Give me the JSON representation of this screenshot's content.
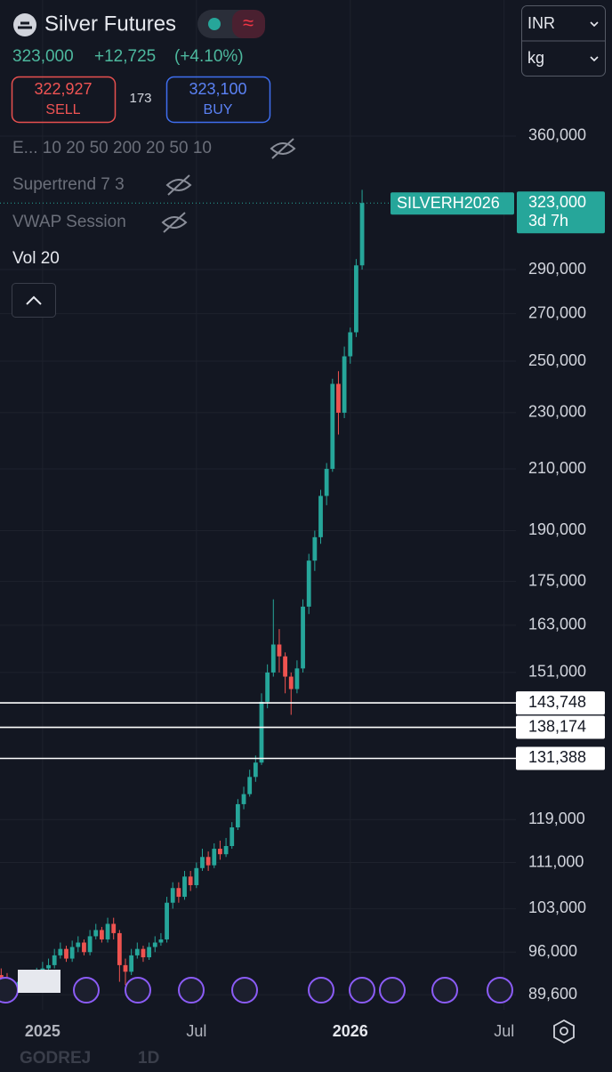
{
  "header": {
    "title": "Silver Futures",
    "price": "323,000",
    "change": "+12,725",
    "change_pct": "(+4.10%)",
    "sell_price": "322,927",
    "sell_label": "SELL",
    "spread": "173",
    "buy_price": "323,100",
    "buy_label": "BUY",
    "currency": "INR",
    "unit": "kg"
  },
  "indicators": [
    "E... 10 20 50 200 20 50 10",
    "Supertrend 7 3",
    "VWAP Session",
    "Vol 20"
  ],
  "footer": {
    "symbol": "GODREJ",
    "interval": "1D"
  },
  "chart_data": {
    "type": "candlestick",
    "log": true,
    "grid": true,
    "up_color": "#26a69a",
    "down_color": "#ef5350",
    "symbol_label": "SILVERH2026",
    "last_price": {
      "value": 323000,
      "label": "323,000"
    },
    "countdown": "3d 7h",
    "hlines": [
      {
        "value": 143748,
        "label": "143,748"
      },
      {
        "value": 138174,
        "label": "138,174"
      },
      {
        "value": 131388,
        "label": "131,388"
      }
    ],
    "xlim": [
      -7.2,
      80
    ],
    "xticks": [
      {
        "value": 0,
        "label": "2025"
      },
      {
        "value": 26,
        "label": "Jul"
      },
      {
        "value": 52,
        "label": "2026"
      },
      {
        "value": 78,
        "label": "Jul"
      }
    ],
    "ylim": [
      87450,
      366800
    ],
    "yticks": [
      {
        "value": 360000,
        "label": "360,000"
      },
      {
        "value": 290000,
        "label": "290,000"
      },
      {
        "value": 270000,
        "label": "270,000"
      },
      {
        "value": 250000,
        "label": "250,000"
      },
      {
        "value": 230000,
        "label": "230,000"
      },
      {
        "value": 210000,
        "label": "210,000"
      },
      {
        "value": 190000,
        "label": "190,000"
      },
      {
        "value": 175000,
        "label": "175,000"
      },
      {
        "value": 163000,
        "label": "163,000"
      },
      {
        "value": 151000,
        "label": "151,000"
      },
      {
        "value": 119000,
        "label": "119,000"
      },
      {
        "value": 111000,
        "label": "111,000"
      },
      {
        "value": 103000,
        "label": "103,000"
      },
      {
        "value": 96000,
        "label": "96,000"
      },
      {
        "value": 89600,
        "label": "89,600"
      }
    ],
    "x": [
      -7,
      -6,
      -5,
      -4,
      -3,
      -2,
      -1,
      0,
      1,
      2,
      3,
      4,
      5,
      6,
      7,
      8,
      9,
      10,
      11,
      12,
      13,
      14,
      15,
      16,
      17,
      18,
      19,
      20,
      21,
      22,
      23,
      24,
      25,
      26,
      27,
      28,
      29,
      30,
      31,
      32,
      33,
      34,
      35,
      36,
      37,
      38,
      39,
      40,
      41,
      42,
      43,
      44,
      45,
      46,
      47,
      48,
      49,
      50,
      51,
      52,
      53,
      54
    ],
    "open": [
      92500,
      92000,
      91000,
      90500,
      91500,
      92500,
      91800,
      92800,
      93500,
      94000,
      95500,
      96500,
      95000,
      96800,
      97500,
      96000,
      98500,
      99500,
      98000,
      100500,
      99000,
      94000,
      93000,
      95500,
      96500,
      95200,
      96800,
      97500,
      98000,
      104000,
      106500,
      105000,
      108500,
      107000,
      110000,
      112000,
      110500,
      113500,
      112500,
      114000,
      117500,
      122000,
      124000,
      127500,
      130500,
      144000,
      151000,
      158000,
      155000,
      150000,
      147000,
      152000,
      168000,
      181000,
      188000,
      201000,
      210000,
      241000,
      230000,
      252000,
      262000,
      292000
    ],
    "high": [
      93500,
      92800,
      91800,
      92300,
      93300,
      93000,
      93600,
      94500,
      95000,
      96500,
      97500,
      97000,
      97800,
      98500,
      98000,
      99500,
      100500,
      100000,
      101500,
      101500,
      99500,
      95000,
      96500,
      97500,
      97000,
      97500,
      98500,
      99000,
      105000,
      107500,
      107500,
      109500,
      109500,
      111000,
      113500,
      113000,
      114500,
      115000,
      115500,
      118500,
      123000,
      125500,
      129000,
      132000,
      146000,
      153000,
      170000,
      162000,
      156000,
      151000,
      154000,
      170000,
      183000,
      190000,
      203000,
      212000,
      243000,
      246000,
      256000,
      264000,
      295000,
      330000
    ],
    "low": [
      91200,
      90300,
      89800,
      90000,
      91000,
      91200,
      91300,
      92300,
      93000,
      93500,
      95000,
      94500,
      94500,
      96000,
      95500,
      95500,
      98000,
      97500,
      97500,
      98000,
      91500,
      91000,
      92500,
      95000,
      94500,
      94800,
      96000,
      97000,
      97500,
      103000,
      104000,
      104500,
      106000,
      106500,
      109500,
      109500,
      110000,
      111500,
      112000,
      113500,
      117000,
      121000,
      123500,
      126500,
      130000,
      142500,
      150000,
      151000,
      146000,
      141000,
      146000,
      151000,
      166000,
      178000,
      186000,
      198000,
      209000,
      222000,
      228000,
      249000,
      260000,
      290000
    ],
    "close": [
      92000,
      91000,
      90500,
      91500,
      92500,
      91800,
      92800,
      93500,
      94000,
      95500,
      96500,
      95000,
      96800,
      97500,
      96000,
      98500,
      99500,
      98000,
      100500,
      99000,
      94000,
      93000,
      95500,
      96500,
      95200,
      96800,
      97500,
      98000,
      104000,
      106500,
      105000,
      108500,
      107000,
      110000,
      112000,
      110500,
      113500,
      112500,
      114000,
      117500,
      122000,
      124000,
      127500,
      130500,
      144000,
      151000,
      158000,
      155000,
      150000,
      147000,
      152000,
      168000,
      181000,
      188000,
      201000,
      210000,
      241000,
      230000,
      252000,
      262000,
      292000,
      323000
    ]
  }
}
